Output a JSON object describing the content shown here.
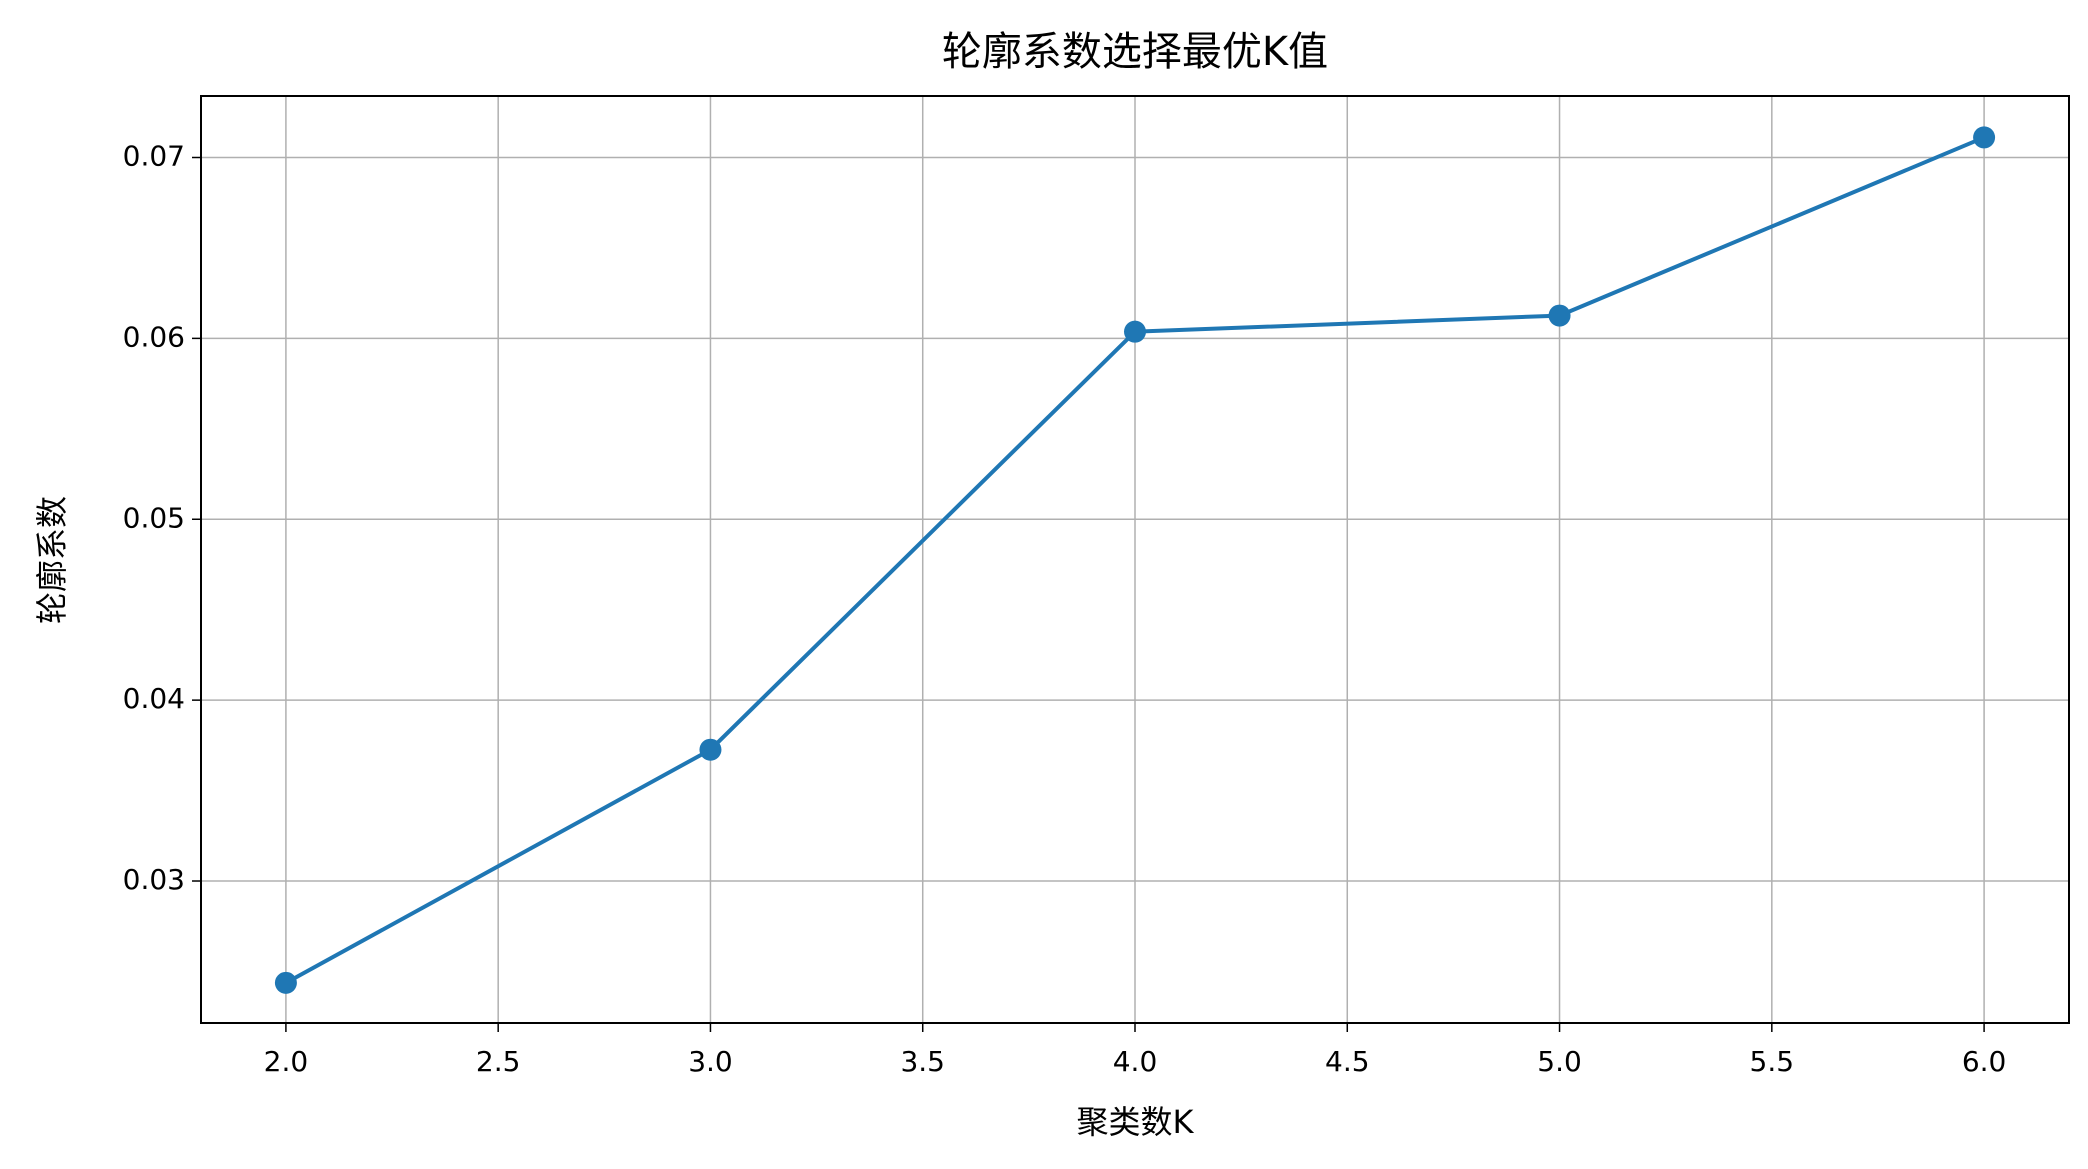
{
  "chart_data": {
    "type": "line",
    "title": "轮廓系数选择最优K值",
    "x_label": "聚类数K",
    "y_label": "轮廓系数",
    "x": [
      2,
      3,
      4,
      5,
      6
    ],
    "series": [
      {
        "name": "轮廓系数",
        "color": "#1f77b4",
        "values": [
          0.02437,
          0.03726,
          0.06037,
          0.06126,
          0.07111
        ]
      }
    ],
    "xlim": [
      1.8,
      6.2
    ],
    "xticks": [
      {
        "value": 2,
        "label": "2.0"
      },
      {
        "value": 2.5,
        "label": "2.5"
      },
      {
        "value": 3,
        "label": "3.0"
      },
      {
        "value": 3.5,
        "label": "3.5"
      },
      {
        "value": 4,
        "label": "4.0"
      },
      {
        "value": 4.5,
        "label": "4.5"
      },
      {
        "value": 5,
        "label": "5.0"
      },
      {
        "value": 5.5,
        "label": "5.5"
      },
      {
        "value": 6,
        "label": "6.0"
      }
    ],
    "ylim": [
      0.02215,
      0.0734
    ],
    "yticks": [
      0.03,
      0.04,
      0.05,
      0.06,
      0.07
    ],
    "grid": true,
    "marker": "o"
  }
}
